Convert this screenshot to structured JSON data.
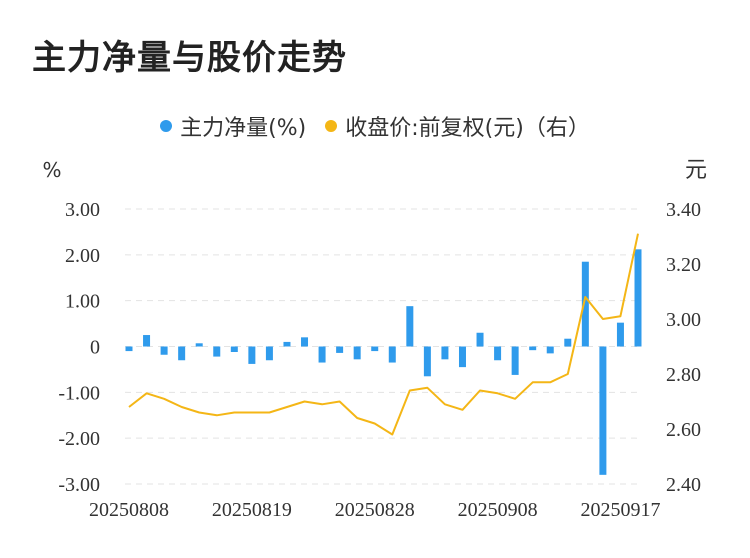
{
  "title": "主力净量与股价走势",
  "legend": {
    "series1": "主力净量(%)",
    "series2": "收盘价:前复权(元)（右）"
  },
  "colors": {
    "bar": "#2f9bec",
    "line": "#f4b616",
    "grid": "#e3e3e3",
    "text": "#333333"
  },
  "chart_data": {
    "type": "bar",
    "y_left_label": "%",
    "y_right_label": "元",
    "y_left_ticks": [
      "3.00",
      "2.00",
      "1.00",
      "0",
      "-1.00",
      "-2.00",
      "-3.00"
    ],
    "y_left_range": [
      -3.0,
      3.0
    ],
    "y_right_ticks": [
      "3.40",
      "3.20",
      "3.00",
      "2.80",
      "2.60",
      "2.40"
    ],
    "y_right_range": [
      2.4,
      3.4
    ],
    "x_tick_labels": [
      "20250808",
      "20250819",
      "20250828",
      "20250908",
      "20250917"
    ],
    "x_tick_positions": [
      0,
      7,
      14,
      21,
      28
    ],
    "series": [
      {
        "name": "主力净量(%)",
        "type": "bar",
        "values": [
          -0.1,
          0.25,
          -0.18,
          -0.3,
          0.07,
          -0.22,
          -0.12,
          -0.38,
          -0.3,
          0.1,
          0.2,
          -0.35,
          -0.14,
          -0.28,
          -0.1,
          -0.35,
          0.88,
          -0.65,
          -0.28,
          -0.45,
          0.3,
          -0.3,
          -0.62,
          -0.08,
          -0.15,
          0.17,
          1.85,
          -2.8,
          0.52,
          2.12
        ]
      },
      {
        "name": "收盘价:前复权(元)（右）",
        "type": "line",
        "values": [
          2.68,
          2.73,
          2.71,
          2.68,
          2.66,
          2.65,
          2.66,
          2.66,
          2.66,
          2.68,
          2.7,
          2.69,
          2.7,
          2.64,
          2.62,
          2.58,
          2.74,
          2.75,
          2.69,
          2.67,
          2.74,
          2.73,
          2.71,
          2.77,
          2.77,
          2.8,
          3.08,
          3.0,
          3.01,
          3.31
        ]
      }
    ]
  }
}
